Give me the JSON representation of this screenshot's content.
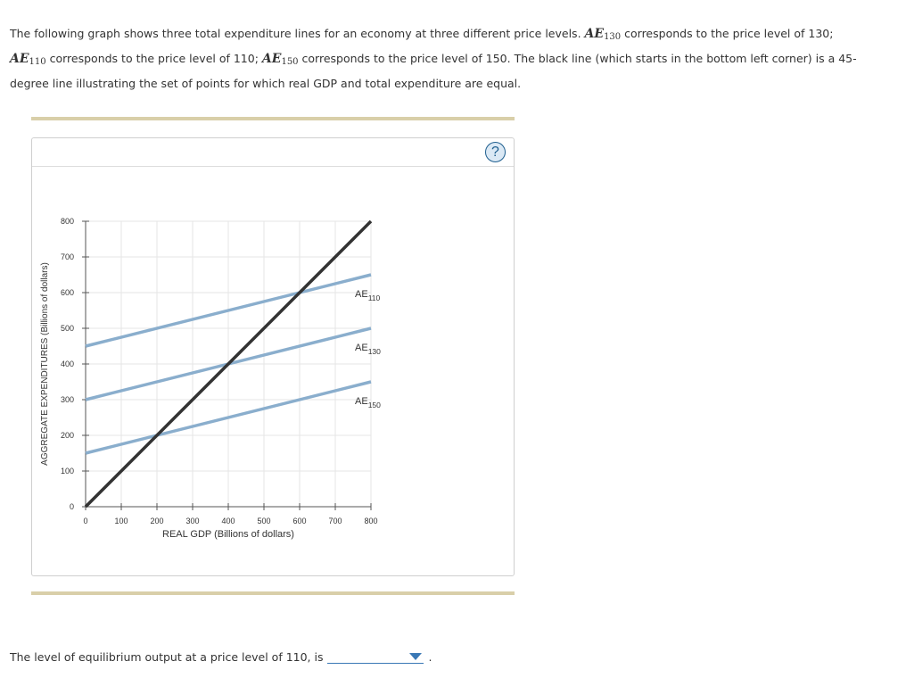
{
  "intro": {
    "p1": "The following graph shows three total expenditure lines for an economy at three different price levels. ",
    "ae": "AE",
    "sub130": "130",
    "p2": " corresponds to the price level of 130;",
    "sub110": "110",
    "p3": " corresponds to the price level of 110; ",
    "sub150": "150",
    "p4": " corresponds to the price level of 150. The black line (which starts in the bottom left corner) is a 45-degree line illustrating the set of points for which real GDP and total expenditure are equal."
  },
  "help": {
    "glyph": "?"
  },
  "question": {
    "text": "The level of equilibrium output at a price level of 110, is",
    "selected": "",
    "period": "."
  },
  "colors": {
    "ae_line": "#8aaecd",
    "line_45": "#333333",
    "rule": "#d9cfa9",
    "accent": "#3a78b5"
  },
  "chart_data": {
    "type": "line",
    "xlabel": "REAL GDP (Billions of dollars)",
    "ylabel": "AGGREGATE EXPENDITURES (Billions of dollars)",
    "xlim": [
      0,
      800
    ],
    "ylim": [
      0,
      800
    ],
    "xticks": [
      0,
      100,
      200,
      300,
      400,
      500,
      600,
      700,
      800
    ],
    "yticks": [
      0,
      100,
      200,
      300,
      400,
      500,
      600,
      700,
      800
    ],
    "grid": true,
    "series": [
      {
        "name": "AE",
        "sub": "110",
        "x": [
          0,
          800
        ],
        "y": [
          450,
          650
        ],
        "color": "#8aaecd"
      },
      {
        "name": "AE",
        "sub": "130",
        "x": [
          0,
          800
        ],
        "y": [
          300,
          500
        ],
        "color": "#8aaecd"
      },
      {
        "name": "AE",
        "sub": "150",
        "x": [
          0,
          800
        ],
        "y": [
          150,
          350
        ],
        "color": "#8aaecd"
      },
      {
        "x": [
          0,
          800
        ],
        "y": [
          0,
          800
        ],
        "color": "#333333"
      }
    ]
  }
}
